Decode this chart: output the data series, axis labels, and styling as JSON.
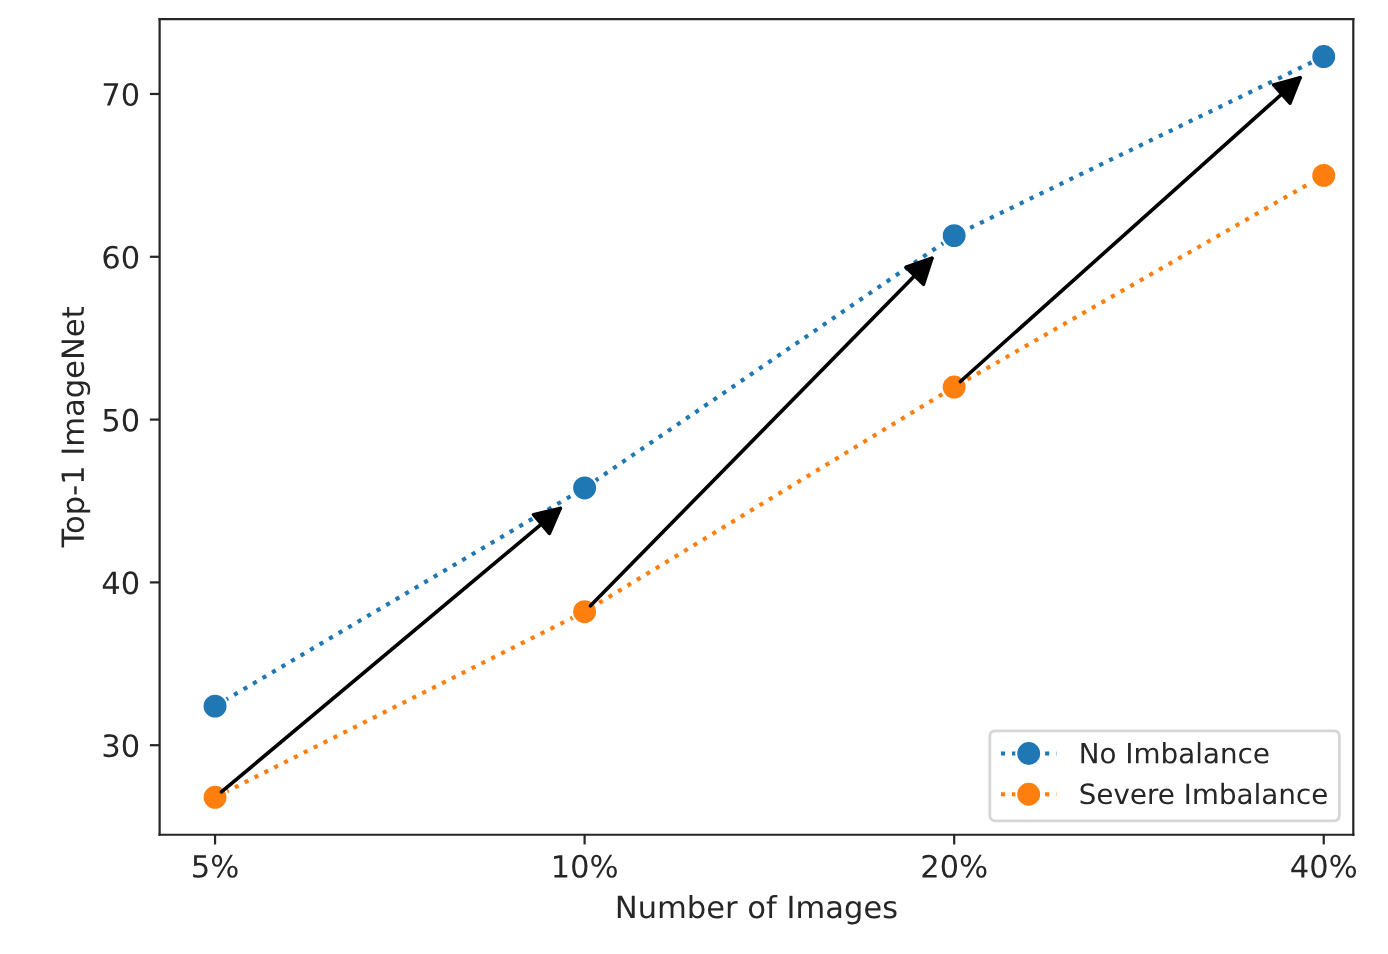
{
  "chart_data": {
    "type": "line",
    "xlabel": "Number of Images",
    "ylabel": "Top-1 ImageNet",
    "categories": [
      "5%",
      "10%",
      "20%",
      "40%"
    ],
    "series": [
      {
        "name": "No Imbalance",
        "color": "#1f77b4",
        "values": [
          32.4,
          45.8,
          61.3,
          72.3
        ]
      },
      {
        "name": "Severe Imbalance",
        "color": "#ff7f0e",
        "values": [
          26.8,
          38.2,
          52.0,
          65.0
        ]
      }
    ],
    "ylim": [
      24.5,
      74.6
    ],
    "yticks": [
      30,
      40,
      50,
      60,
      70
    ],
    "grid": false,
    "legend": "bottom right",
    "marker": "circle",
    "line_style": "dotted"
  }
}
